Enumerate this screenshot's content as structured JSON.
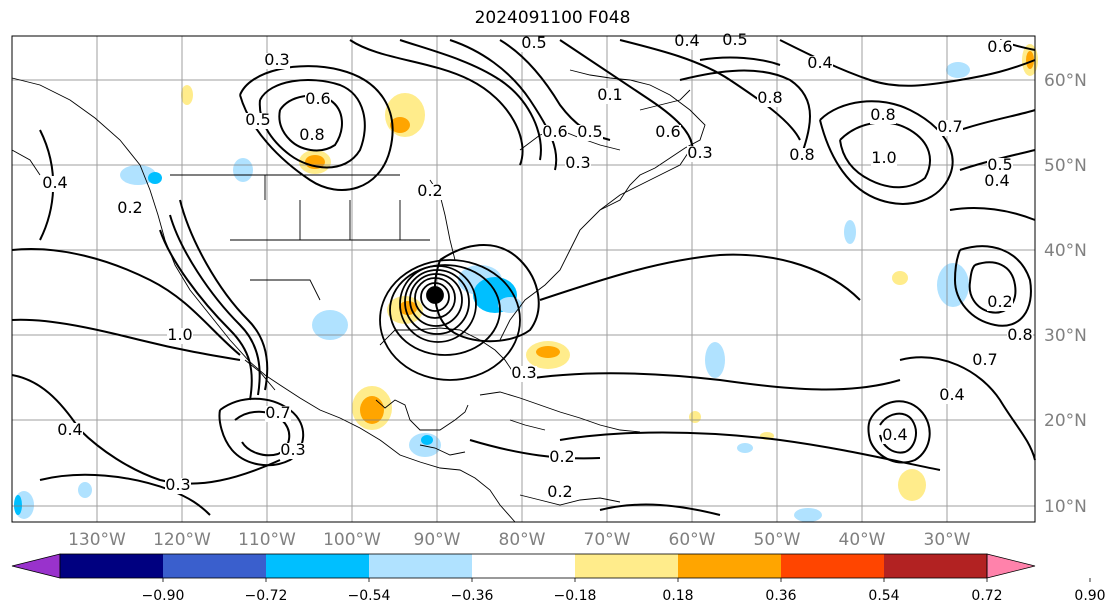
{
  "title": "2024091100 F048",
  "longitude_labels": [
    "130°W",
    "120°W",
    "110°W",
    "100°W",
    "90°W",
    "80°W",
    "70°W",
    "60°W",
    "50°W",
    "40°W",
    "30°W"
  ],
  "latitude_labels": [
    "10°N",
    "20°N",
    "30°N",
    "40°N",
    "50°N",
    "60°N"
  ],
  "colorbar": {
    "ticks": [
      "−0.90",
      "−0.72",
      "−0.54",
      "−0.36",
      "−0.18",
      "0.18",
      "0.36",
      "0.54",
      "0.72",
      "0.90"
    ],
    "colors": [
      "#9932cc",
      "#000080",
      "#3a5fcd",
      "#00bfff",
      "#b0e2ff",
      "#ffffff",
      "#ffec8b",
      "#ffa500",
      "#ff4500",
      "#b22222",
      "#ff82ab"
    ]
  },
  "contour_labels": [
    "0.3",
    "0.6",
    "0.8",
    "1.0",
    "0.5",
    "0.4",
    "0.7",
    "0.2",
    "0.3",
    "0.6",
    "0.8",
    "1.0",
    "0.4",
    "0.5",
    "0.6",
    "0.2",
    "0.7",
    "0.8",
    "0.3",
    "0.2",
    "0.3",
    "0.4",
    "0.5",
    "0.6",
    "0.7",
    "0.4",
    "0.8",
    "0.2",
    "0.3",
    "0.5",
    "0.4",
    "0.3",
    "0.2",
    "0.5",
    "0.4",
    "0.1",
    "0.8",
    "0.4"
  ],
  "contour_field_colors": {
    "line": "#000000",
    "coast": "#000000",
    "grid": "#808080"
  }
}
